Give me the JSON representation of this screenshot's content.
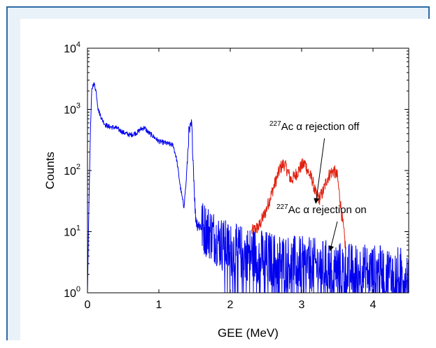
{
  "chart_data": {
    "type": "line",
    "xlabel": "GEE (MeV)",
    "ylabel": "Counts",
    "xlim": [
      0,
      4.5
    ],
    "ylim": [
      1,
      10000
    ],
    "y_scale": "log",
    "x_ticks": [
      "0",
      "1",
      "2",
      "3",
      "4"
    ],
    "y_ticks": [
      {
        "base": "10",
        "exp": "0"
      },
      {
        "base": "10",
        "exp": "1"
      },
      {
        "base": "10",
        "exp": "2"
      },
      {
        "base": "10",
        "exp": "3"
      },
      {
        "base": "10",
        "exp": "4"
      }
    ],
    "colors": {
      "blue": "#0000ee",
      "red": "#e02010"
    },
    "series": [
      {
        "color": "#0000ee",
        "x": [
          0.0,
          0.02,
          0.04,
          0.06,
          0.08,
          0.1,
          0.12,
          0.15,
          0.2,
          0.25,
          0.3,
          0.4,
          0.5,
          0.6,
          0.7,
          0.75,
          0.8,
          0.85,
          0.9,
          1.0,
          1.1,
          1.2,
          1.25,
          1.3,
          1.35,
          1.38,
          1.42,
          1.46,
          1.48,
          1.51,
          1.53,
          1.56,
          1.6,
          1.7,
          1.8,
          1.9,
          2.0,
          2.2,
          2.4,
          2.6,
          2.8,
          3.0,
          3.2,
          3.4,
          3.6,
          3.8,
          4.0,
          4.2,
          4.4,
          4.5
        ],
        "y": [
          1,
          25,
          400,
          2000,
          2600,
          2500,
          2000,
          1000,
          700,
          560,
          520,
          500,
          420,
          380,
          420,
          480,
          500,
          420,
          380,
          300,
          280,
          260,
          150,
          55,
          25,
          60,
          400,
          560,
          150,
          20,
          14,
          13,
          12,
          10,
          8,
          6,
          5,
          4.5,
          4,
          3.5,
          3.2,
          3,
          2.8,
          2.6,
          2.4,
          2.3,
          2.2,
          2.1,
          2.0,
          2.0
        ]
      },
      {
        "color": "#e02010",
        "x": [
          2.3,
          2.4,
          2.5,
          2.6,
          2.7,
          2.75,
          2.8,
          2.85,
          2.9,
          3.0,
          3.05,
          3.1,
          3.15,
          3.2,
          3.25,
          3.3,
          3.35,
          3.4,
          3.45,
          3.5,
          3.55,
          3.6,
          3.62
        ],
        "y": [
          10,
          12,
          22,
          50,
          110,
          130,
          100,
          70,
          80,
          120,
          130,
          90,
          70,
          40,
          35,
          45,
          70,
          90,
          100,
          80,
          25,
          8,
          5
        ]
      }
    ],
    "annotations": [
      {
        "sup": "227",
        "text": "Ac α rejection off",
        "x_from": 3.32,
        "y_from": 65,
        "x_to": 3.2,
        "y_to": 30
      },
      {
        "sup": "227",
        "text": "Ac α rejection on",
        "x_from": 3.5,
        "y_from": 9,
        "x_to": 3.4,
        "y_to": 5
      }
    ]
  }
}
